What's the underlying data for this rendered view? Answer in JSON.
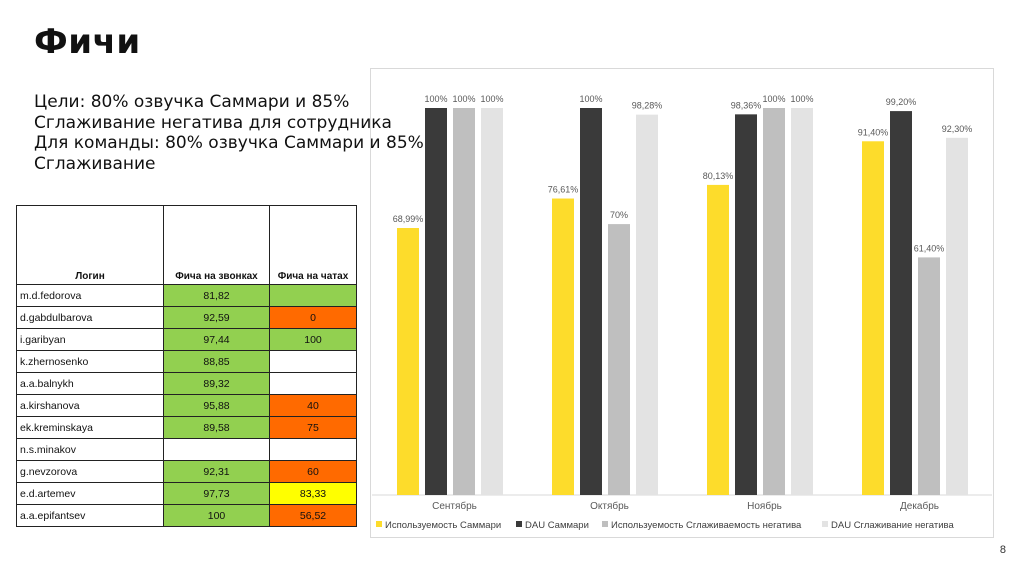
{
  "slide": {
    "title": "Фичи",
    "goals": [
      "Цели: 80% озвучка Саммари и 85%",
      "Сглаживание негатива для сотрудника",
      "Для команды: 80% озвучка Саммари и 85%",
      "Сглаживание"
    ],
    "page_number": "8"
  },
  "table": {
    "headers": [
      "Логин",
      "Фича на звонках",
      "Фича на чатах"
    ],
    "rows": [
      {
        "login": "m.d.fedorova",
        "calls": "81,82",
        "chats": "",
        "calls_color": "green",
        "chats_color": "green"
      },
      {
        "login": "d.gabdulbarova",
        "calls": "92,59",
        "chats": "0",
        "calls_color": "green",
        "chats_color": "orange"
      },
      {
        "login": "i.garibyan",
        "calls": "97,44",
        "chats": "100",
        "calls_color": "green",
        "chats_color": "green"
      },
      {
        "login": "k.zhernosenko",
        "calls": "88,85",
        "chats": "",
        "calls_color": "green",
        "chats_color": ""
      },
      {
        "login": "a.a.balnykh",
        "calls": "89,32",
        "chats": "",
        "calls_color": "green",
        "chats_color": ""
      },
      {
        "login": "a.kirshanova",
        "calls": "95,88",
        "chats": "40",
        "calls_color": "green",
        "chats_color": "orange"
      },
      {
        "login": "ek.kreminskaya",
        "calls": "89,58",
        "chats": "75",
        "calls_color": "green",
        "chats_color": "orange"
      },
      {
        "login": "n.s.minakov",
        "calls": "",
        "chats": "",
        "calls_color": "",
        "chats_color": ""
      },
      {
        "login": "g.nevzorova",
        "calls": "92,31",
        "chats": "60",
        "calls_color": "green",
        "chats_color": "orange"
      },
      {
        "login": "e.d.artemev",
        "calls": "97,73",
        "chats": "83,33",
        "calls_color": "green",
        "chats_color": "yellow"
      },
      {
        "login": "a.a.epifantsev",
        "calls": "100",
        "chats": "56,52",
        "calls_color": "green",
        "chats_color": "orange"
      }
    ]
  },
  "chart_data": {
    "type": "bar",
    "categories": [
      "Сентябрь",
      "Октябрь",
      "Ноябрь",
      "Декабрь"
    ],
    "ylim": [
      0,
      100
    ],
    "grid": false,
    "legend_position": "bottom",
    "series": [
      {
        "name": "Используемость Саммари",
        "color": "#fddc2b",
        "values": [
          68.99,
          76.61,
          80.13,
          91.4
        ],
        "labels": [
          "68,99%",
          "76,61%",
          "80,13%",
          "91,40%"
        ]
      },
      {
        "name": "DAU Саммари",
        "color": "#3a3a3a",
        "values": [
          100,
          100,
          98.36,
          99.2
        ],
        "labels": [
          "100%",
          "100%",
          "98,36%",
          "99,20%"
        ]
      },
      {
        "name": "Используемость Сглаживаемость негатива",
        "color": "#bfbfbf",
        "values": [
          100,
          70,
          100,
          61.4
        ],
        "labels": [
          "100%",
          "70%",
          "100%",
          "61,40%"
        ]
      },
      {
        "name": "DAU Сглаживание негатива",
        "color": "#e3e3e3",
        "values": [
          100,
          98.28,
          100,
          92.3
        ],
        "labels": [
          "100%",
          "98,28%",
          "100%",
          "92,30%"
        ]
      }
    ]
  }
}
